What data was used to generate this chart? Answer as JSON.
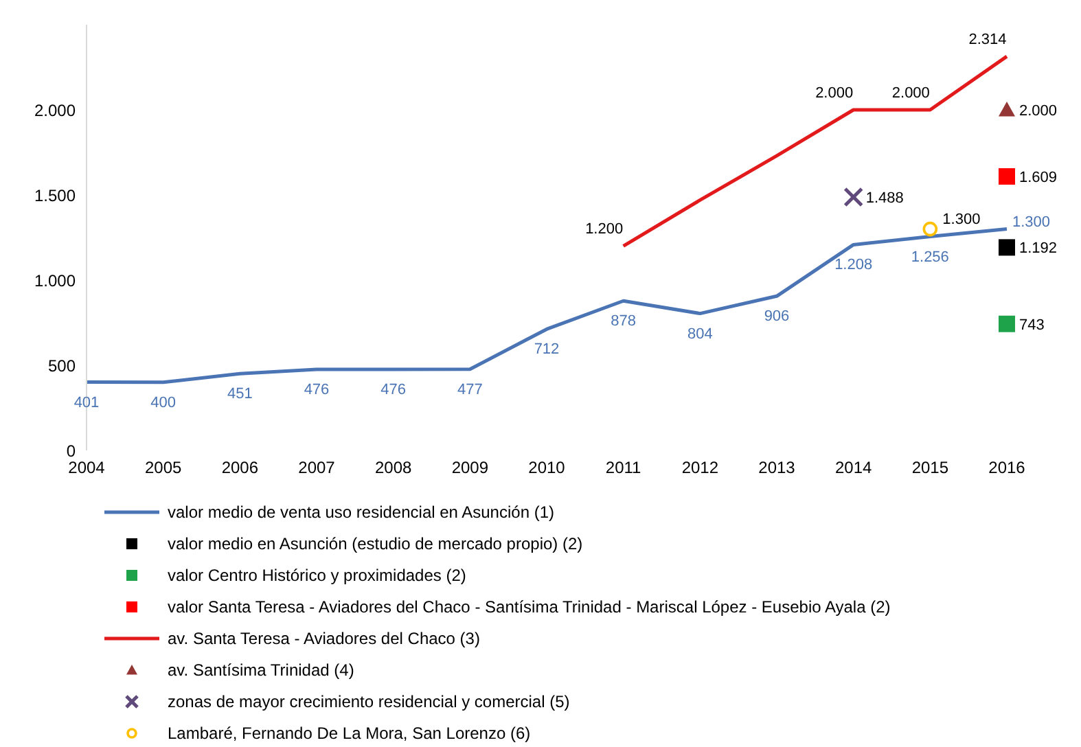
{
  "chart_data": {
    "type": "line",
    "categories": [
      "2004",
      "2005",
      "2006",
      "2007",
      "2008",
      "2009",
      "2010",
      "2011",
      "2012",
      "2013",
      "2014",
      "2015",
      "2016"
    ],
    "ylim": [
      0,
      2500
    ],
    "yticks": [
      {
        "value": 0,
        "label": "0"
      },
      {
        "value": 500,
        "label": "500"
      },
      {
        "value": 1000,
        "label": "1.000"
      },
      {
        "value": 1500,
        "label": "1.500"
      },
      {
        "value": 2000,
        "label": "2.000"
      }
    ],
    "grid": false,
    "legend": "bottom",
    "series": [
      {
        "name": "valor medio de venta uso residencial en Asunción (1)",
        "marker": "none",
        "color": "#4a74b4",
        "values": [
          401,
          400,
          451,
          476,
          476,
          477,
          712,
          878,
          804,
          906,
          1208,
          1256,
          1300
        ],
        "value_labels": [
          "401",
          "400",
          "451",
          "476",
          "476",
          "477",
          "712",
          "878",
          "804",
          "906",
          "1.208",
          "1.256",
          "1.300"
        ]
      },
      {
        "name": "valor medio en Asunción (estudio de mercado propio) (2)",
        "type": "scatter",
        "marker": "square",
        "color": "#000000",
        "values": [
          null,
          null,
          null,
          null,
          null,
          null,
          null,
          null,
          null,
          null,
          null,
          null,
          1192
        ],
        "value_labels": [
          null,
          null,
          null,
          null,
          null,
          null,
          null,
          null,
          null,
          null,
          null,
          null,
          "1.192"
        ]
      },
      {
        "name": "valor Centro Histórico y proximidades (2)",
        "type": "scatter",
        "marker": "square",
        "color": "#1fa34a",
        "values": [
          null,
          null,
          null,
          null,
          null,
          null,
          null,
          null,
          null,
          null,
          null,
          null,
          743
        ],
        "value_labels": [
          null,
          null,
          null,
          null,
          null,
          null,
          null,
          null,
          null,
          null,
          null,
          null,
          "743"
        ]
      },
      {
        "name": "valor Santa Teresa - Aviadores del Chaco - Santísima Trinidad - Mariscal López - Eusebio Ayala (2)",
        "type": "scatter",
        "marker": "square",
        "color": "#ff0000",
        "values": [
          null,
          null,
          null,
          null,
          null,
          null,
          null,
          null,
          null,
          null,
          null,
          null,
          1609
        ],
        "value_labels": [
          null,
          null,
          null,
          null,
          null,
          null,
          null,
          null,
          null,
          null,
          null,
          null,
          "1.609"
        ]
      },
      {
        "name": "av. Santa Teresa - Aviadores del Chaco (3)",
        "type": "line",
        "marker": "none",
        "color": "#e31a1c",
        "values": [
          null,
          null,
          null,
          null,
          null,
          null,
          null,
          1200,
          1470,
          1730,
          2000,
          2000,
          2314
        ],
        "value_labels": [
          null,
          null,
          null,
          null,
          null,
          null,
          null,
          "1.200",
          null,
          null,
          "2.000",
          "2.000",
          "2.314"
        ]
      },
      {
        "name": "av. Santísima Trinidad (4)",
        "type": "scatter",
        "marker": "triangle",
        "color": "#943634",
        "values": [
          null,
          null,
          null,
          null,
          null,
          null,
          null,
          null,
          null,
          null,
          null,
          null,
          2000
        ],
        "value_labels": [
          null,
          null,
          null,
          null,
          null,
          null,
          null,
          null,
          null,
          null,
          null,
          null,
          "2.000"
        ]
      },
      {
        "name": "zonas de mayor crecimiento residencial y comercial (5)",
        "type": "scatter",
        "marker": "cross",
        "color": "#604a7b",
        "values": [
          null,
          null,
          null,
          null,
          null,
          null,
          null,
          null,
          null,
          null,
          1488,
          null,
          null
        ],
        "value_labels": [
          null,
          null,
          null,
          null,
          null,
          null,
          null,
          null,
          null,
          null,
          "1.488",
          null,
          null
        ]
      },
      {
        "name": "Lambaré, Fernando De La Mora, San Lorenzo (6)",
        "type": "scatter",
        "marker": "circle",
        "color": "#ffc000",
        "values": [
          null,
          null,
          null,
          null,
          null,
          null,
          null,
          null,
          null,
          null,
          null,
          1300,
          null
        ],
        "value_labels": [
          null,
          null,
          null,
          null,
          null,
          null,
          null,
          null,
          null,
          null,
          null,
          "1.300",
          null
        ]
      }
    ]
  }
}
